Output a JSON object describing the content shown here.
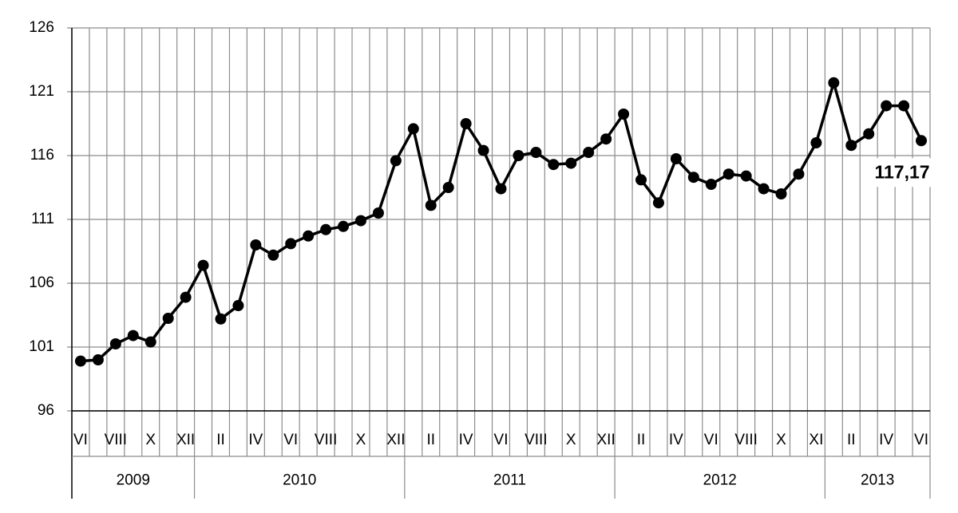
{
  "chart_data": {
    "type": "line",
    "color": "#000000",
    "grid": true,
    "categories": [
      "VI",
      null,
      "VIII",
      null,
      "X",
      null,
      "XII",
      null,
      "II",
      null,
      "IV",
      null,
      "VI",
      null,
      "VIII",
      null,
      "X",
      null,
      "XII",
      null,
      "II",
      null,
      "IV",
      null,
      "VI",
      null,
      "VIII",
      null,
      "X",
      null,
      "XII",
      null,
      "II",
      null,
      "IV",
      null,
      "VI",
      null,
      "VIII",
      null,
      "X",
      null,
      "XI",
      null,
      "II",
      null,
      "IV",
      null,
      "VI"
    ],
    "x_groups": [
      {
        "label": "2009",
        "count": 7
      },
      {
        "label": "2010",
        "count": 12
      },
      {
        "label": "2011",
        "count": 12
      },
      {
        "label": "2012",
        "count": 12
      },
      {
        "label": "2013",
        "count": 6
      }
    ],
    "values": [
      99.9,
      100.0,
      101.25,
      101.9,
      101.4,
      103.25,
      104.9,
      107.4,
      103.2,
      104.25,
      109.0,
      108.2,
      109.1,
      109.7,
      110.2,
      110.45,
      110.9,
      111.5,
      115.6,
      118.1,
      112.1,
      113.5,
      118.5,
      116.4,
      113.4,
      116.0,
      116.25,
      115.3,
      115.4,
      116.25,
      117.3,
      119.25,
      114.1,
      112.3,
      115.75,
      114.3,
      113.75,
      114.55,
      114.4,
      113.4,
      113.0,
      114.55,
      117.0,
      121.7,
      116.8,
      117.7,
      119.9,
      119.9,
      117.17
    ],
    "value_labels": [
      null,
      null,
      null,
      null,
      null,
      null,
      null,
      null,
      null,
      null,
      null,
      null,
      null,
      null,
      null,
      null,
      null,
      null,
      null,
      null,
      null,
      null,
      null,
      null,
      null,
      null,
      null,
      null,
      null,
      null,
      null,
      null,
      null,
      null,
      null,
      null,
      null,
      null,
      null,
      null,
      null,
      null,
      null,
      null,
      null,
      null,
      null,
      null,
      "117,17"
    ],
    "ylim": [
      96,
      126
    ],
    "yticks": [
      96,
      101,
      106,
      111,
      116,
      121,
      126
    ]
  }
}
